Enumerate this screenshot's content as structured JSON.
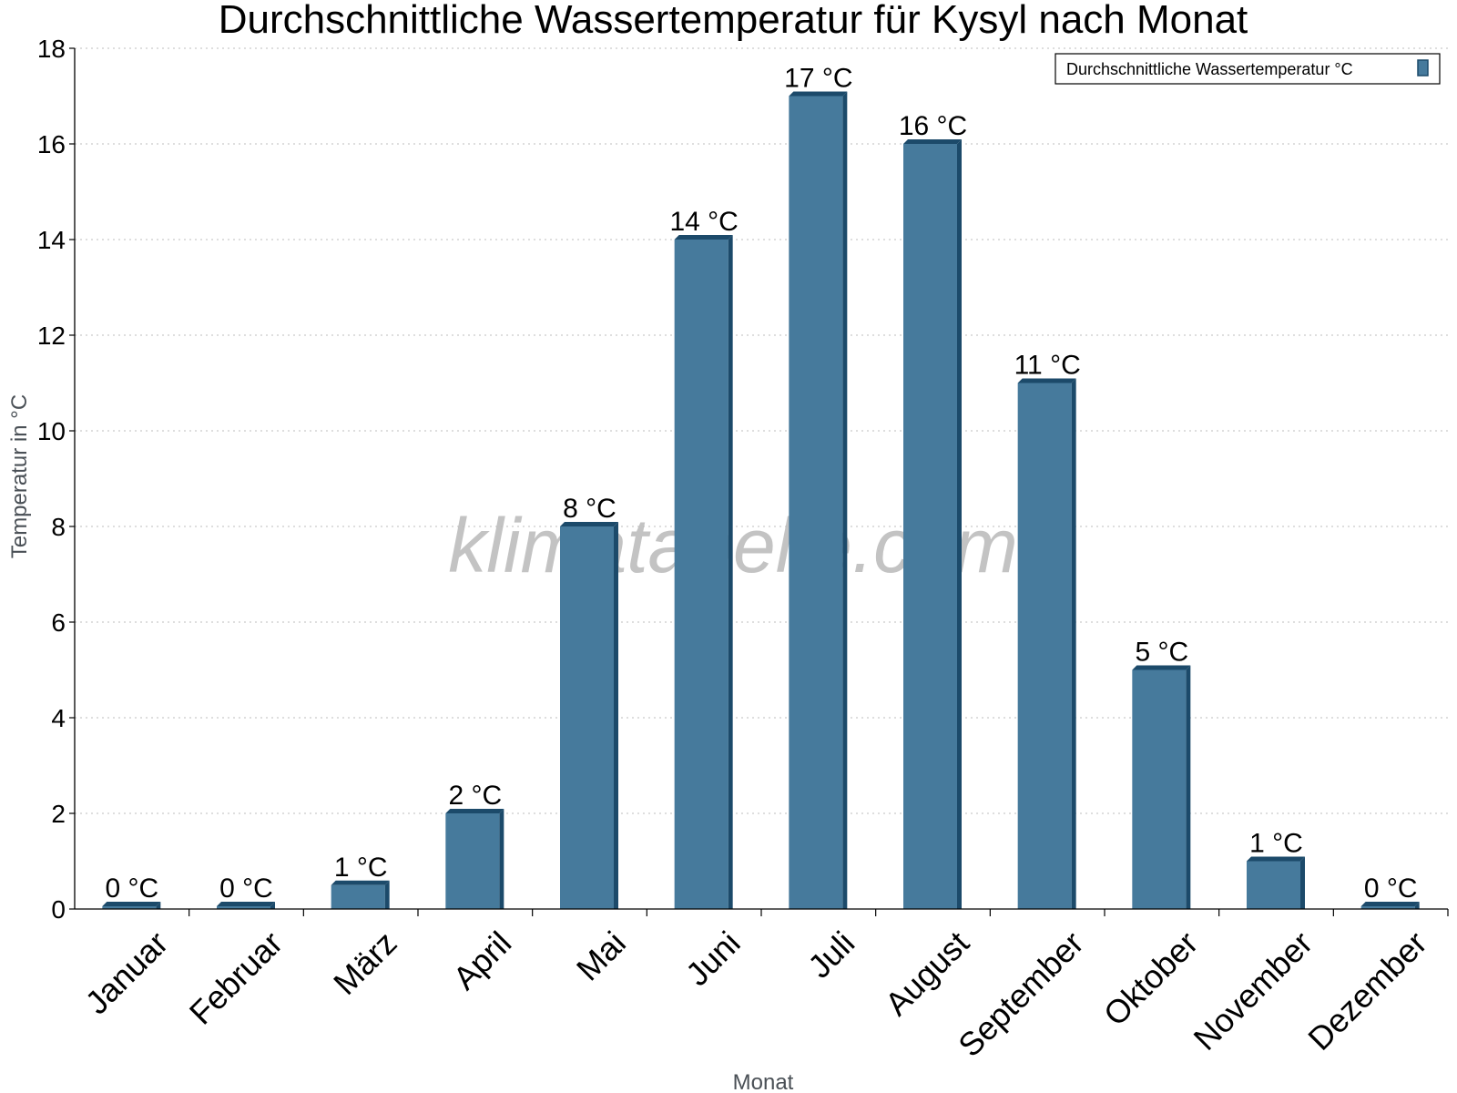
{
  "chart_data": {
    "type": "bar",
    "title": "Durchschnittliche Wassertemperatur für Kysyl nach Monat",
    "xlabel": "Monat",
    "ylabel": "Temperatur in °C",
    "categories": [
      "Januar",
      "Februar",
      "März",
      "April",
      "Mai",
      "Juni",
      "Juli",
      "August",
      "September",
      "Oktober",
      "November",
      "Dezember"
    ],
    "series": [
      {
        "name": "Durchschnittliche Wassertemperatur °C",
        "values": [
          0,
          0,
          0.5,
          2,
          8,
          14,
          17,
          16,
          11,
          5,
          1,
          0
        ],
        "labels": [
          "0 °C",
          "0 °C",
          "1 °C",
          "2 °C",
          "8 °C",
          "14 °C",
          "17 °C",
          "16 °C",
          "11 °C",
          "5 °C",
          "1 °C",
          "0 °C"
        ]
      }
    ],
    "ylim": [
      0,
      18
    ],
    "yticks": [
      "0",
      "2",
      "4",
      "6",
      "8",
      "10",
      "12",
      "14",
      "16",
      "18"
    ],
    "grid": true,
    "legend_position": "top-right",
    "bar_color": "#467a9c",
    "bar_edge_color": "#1c4a6a",
    "watermark": "klimatabelle.com"
  }
}
